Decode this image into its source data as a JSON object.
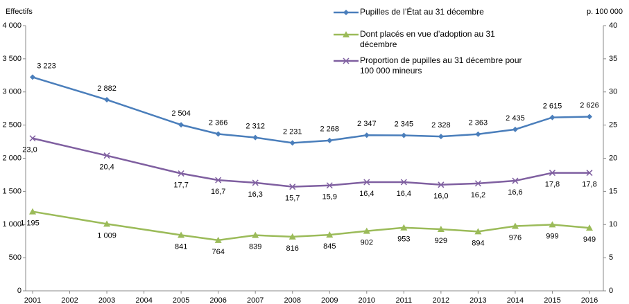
{
  "chart_data": {
    "type": "line",
    "y_label": "Effectifs",
    "y2_label": "p. 100 000",
    "x": [
      2001,
      2003,
      2005,
      2006,
      2007,
      2008,
      2009,
      2010,
      2011,
      2012,
      2013,
      2014,
      2015,
      2016
    ],
    "xlim": [
      2001,
      2016
    ],
    "xticks": [
      2001,
      2002,
      2003,
      2004,
      2005,
      2006,
      2007,
      2008,
      2009,
      2010,
      2011,
      2012,
      2013,
      2014,
      2015,
      2016
    ],
    "ylim": [
      0,
      4000
    ],
    "yticks": [
      0,
      500,
      {
        "value": 1000,
        "label": "1 000"
      },
      {
        "value": 1500,
        "label": "1 500"
      },
      {
        "value": 2000,
        "label": "2 000"
      },
      {
        "value": 2500,
        "label": "2 500"
      },
      {
        "value": 3000,
        "label": "3 000"
      },
      {
        "value": 3500,
        "label": "3 500"
      },
      {
        "value": 4000,
        "label": "4 000"
      }
    ],
    "y2lim": [
      0,
      40
    ],
    "y2ticks": [
      0,
      5,
      10,
      15,
      20,
      25,
      30,
      35,
      40
    ],
    "series": [
      {
        "name": "Pupilles de l’État au 31 décembre",
        "color": "#4a7ebb",
        "marker": "diamond",
        "values": [
          3223,
          2882,
          2504,
          2366,
          2312,
          2231,
          2268,
          2347,
          2345,
          2328,
          2363,
          2435,
          2615,
          2626
        ],
        "value_labels": [
          "3 223",
          "2 882",
          "2 504",
          "2 366",
          "2 312",
          "2 231",
          "2 268",
          "2 347",
          "2 345",
          "2 328",
          "2 363",
          "2 435",
          "2 615",
          "2 626"
        ]
      },
      {
        "name": "Dont placés en vue d’adoption au 31 décembre",
        "color": "#9bbb59",
        "marker": "triangle",
        "values": [
          1195,
          1009,
          841,
          764,
          839,
          816,
          845,
          902,
          953,
          929,
          894,
          976,
          999,
          949
        ],
        "value_labels": [
          "1 195",
          "1 009",
          "841",
          "764",
          "839",
          "816",
          "845",
          "902",
          "953",
          "929",
          "894",
          "976",
          "999",
          "949"
        ]
      },
      {
        "name": "Proportion de pupilles au 31 décembre pour 100 000 mineurs",
        "color": "#7f5fa0",
        "marker": "x",
        "axis": "y2",
        "values": [
          23.0,
          20.4,
          17.7,
          16.7,
          16.3,
          15.7,
          15.9,
          16.4,
          16.4,
          16.0,
          16.2,
          16.6,
          17.8,
          17.8
        ],
        "value_labels": [
          "23,0",
          "20,4",
          "17,7",
          "16,7",
          "16,3",
          "15,7",
          "15,9",
          "16,4",
          "16,4",
          "16,0",
          "16,2",
          "16,6",
          "17,8",
          "17,8"
        ]
      }
    ]
  }
}
